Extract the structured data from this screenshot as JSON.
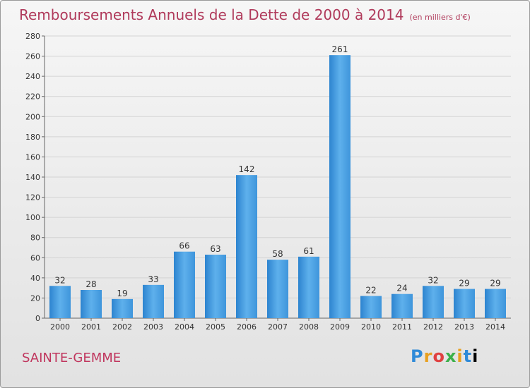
{
  "chart_data": {
    "type": "bar",
    "title": "Remboursements Annuels de la Dette de 2000 à 2014",
    "unit": "(en milliers d'€)",
    "categories": [
      "2000",
      "2001",
      "2002",
      "2003",
      "2004",
      "2005",
      "2006",
      "2007",
      "2008",
      "2009",
      "2010",
      "2011",
      "2012",
      "2013",
      "2014"
    ],
    "values": [
      32,
      28,
      19,
      33,
      66,
      63,
      142,
      58,
      61,
      261,
      22,
      24,
      32,
      29,
      29
    ],
    "ylim": [
      0,
      280
    ],
    "yticks": [
      0,
      20,
      40,
      60,
      80,
      100,
      120,
      140,
      160,
      180,
      200,
      220,
      240,
      260,
      280
    ],
    "grid": true,
    "bar_color": "#4a9fe0",
    "title_color": "#b03a5b"
  },
  "footer": {
    "commune": "SAINTE-GEMME",
    "logo_letters": [
      "P",
      "r",
      "o",
      "x",
      "i",
      "t",
      "i"
    ]
  }
}
